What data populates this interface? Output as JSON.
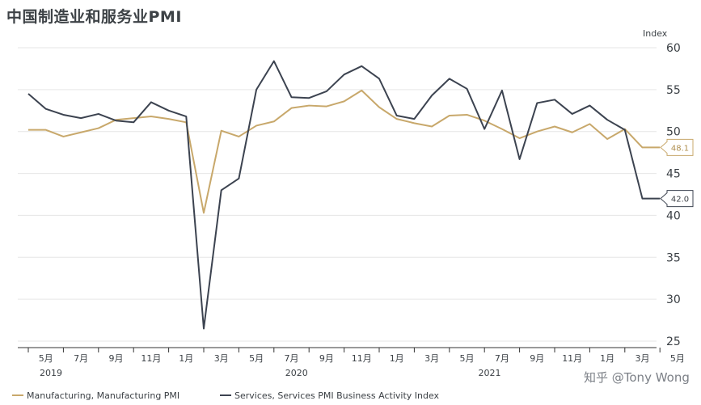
{
  "chart_data": {
    "type": "line",
    "title": "中国制造业和服务业PMI",
    "ylabel": "Index",
    "ylim": [
      25,
      60
    ],
    "yticks": [
      25,
      30,
      35,
      40,
      45,
      50,
      55,
      60
    ],
    "x_tick_labels": [
      "5月",
      "7月",
      "9月",
      "11月",
      "1月",
      "3月",
      "5月",
      "7月",
      "9月",
      "11月",
      "1月",
      "3月",
      "5月",
      "7月",
      "9月",
      "11月",
      "1月",
      "3月",
      "5月"
    ],
    "year_labels": [
      "2019",
      "2020",
      "2021"
    ],
    "x": [
      "2019-04",
      "2019-05",
      "2019-06",
      "2019-07",
      "2019-08",
      "2019-09",
      "2019-10",
      "2019-11",
      "2019-12",
      "2020-01",
      "2020-02",
      "2020-03",
      "2020-04",
      "2020-05",
      "2020-06",
      "2020-07",
      "2020-08",
      "2020-09",
      "2020-10",
      "2020-11",
      "2020-12",
      "2021-01",
      "2021-02",
      "2021-03",
      "2021-04",
      "2021-05",
      "2021-06",
      "2021-07",
      "2021-08",
      "2021-09",
      "2021-10",
      "2021-11",
      "2021-12",
      "2022-01",
      "2022-02",
      "2022-03",
      "2022-04"
    ],
    "series": [
      {
        "name": "Manufacturing, Manufacturing PMI",
        "color": "#c8a86b",
        "values": [
          50.2,
          50.2,
          49.4,
          49.9,
          50.4,
          51.4,
          51.6,
          51.8,
          51.5,
          51.1,
          40.3,
          50.1,
          49.4,
          50.7,
          51.2,
          52.8,
          53.1,
          53.0,
          53.6,
          54.9,
          52.9,
          51.5,
          51.0,
          50.6,
          51.9,
          52.0,
          51.3,
          50.3,
          49.2,
          50.0,
          50.6,
          49.9,
          50.9,
          49.1,
          50.3,
          48.1,
          48.1
        ],
        "end_label": "48.1"
      },
      {
        "name": "Services, Services PMI Business Activity Index",
        "color": "#3c4350",
        "values": [
          54.5,
          52.7,
          52.0,
          51.6,
          52.1,
          51.3,
          51.1,
          53.5,
          52.5,
          51.8,
          26.5,
          43.0,
          44.4,
          55.0,
          58.4,
          54.1,
          54.0,
          54.8,
          56.8,
          57.8,
          56.3,
          51.9,
          51.5,
          54.3,
          56.3,
          55.1,
          50.3,
          54.9,
          46.7,
          53.4,
          53.8,
          52.1,
          53.1,
          51.4,
          50.2,
          42.0,
          42.0
        ],
        "end_label": "42.0"
      }
    ],
    "grid": true,
    "legend_position": "bottom"
  },
  "watermark": "知乎 @Tony Wong"
}
